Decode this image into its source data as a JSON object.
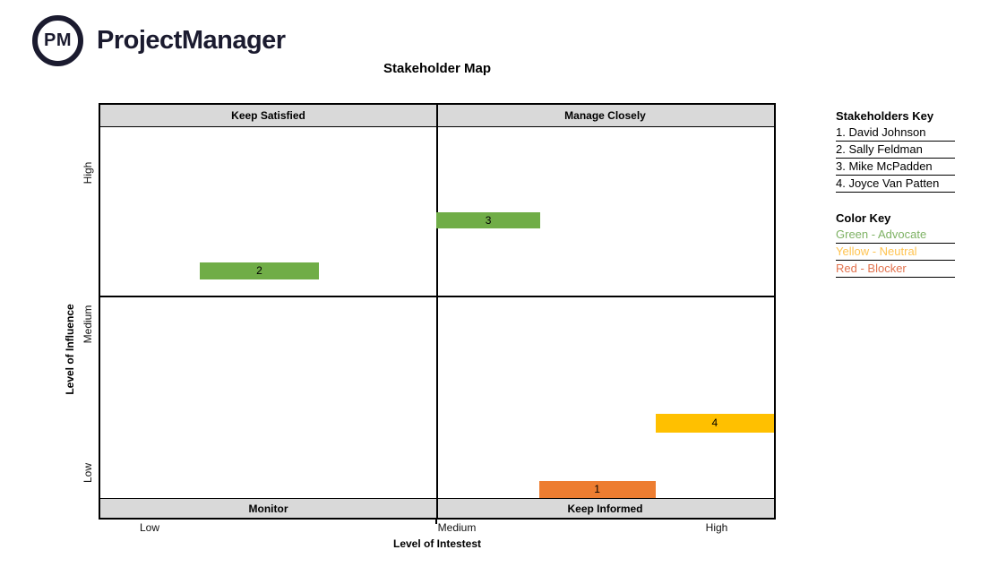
{
  "logo": {
    "monogram": "PM",
    "wordmark": "ProjectManager",
    "color": "#1b1b2f"
  },
  "chart": {
    "title": "Stakeholder Map",
    "quadrant_labels": {
      "top_left": "Keep Satisfied",
      "top_right": "Manage Closely",
      "bottom_left": "Monitor",
      "bottom_right": "Keep Informed"
    },
    "x_axis": {
      "title": "Level of Intestest",
      "ticks": [
        "Low",
        "Medium",
        "High"
      ]
    },
    "y_axis": {
      "title": "Level of Influence",
      "ticks": [
        "High",
        "Medium",
        "Low"
      ]
    },
    "band_bg": "#d9d9d9"
  },
  "chart_data": {
    "type": "scatter",
    "title": "Stakeholder Map",
    "xlabel": "Level of Intestest",
    "ylabel": "Level of Influence",
    "x_ticks": [
      "Low",
      "Medium",
      "High"
    ],
    "y_ticks": [
      "Low",
      "Medium",
      "High"
    ],
    "legend_position": "right",
    "grid": "quadrants",
    "quadrants": {
      "top_left": "Keep Satisfied",
      "top_right": "Manage Closely",
      "bottom_left": "Monitor",
      "bottom_right": "Keep Informed"
    },
    "points": [
      {
        "id": "1",
        "name": "David Johnson",
        "role": "Blocker",
        "color": "#ED7D31",
        "quadrant": "Keep Informed",
        "interest": "Medium-High",
        "influence": "Low",
        "x_pct": 65.1,
        "y_pct": 91.0,
        "w_pct": 17.3,
        "h_pct": 4.3
      },
      {
        "id": "2",
        "name": "Sally Feldman",
        "role": "Advocate",
        "color": "#70AD47",
        "quadrant": "Keep Satisfied",
        "interest": "Low-Medium",
        "influence": "High",
        "x_pct": 14.8,
        "y_pct": 38.1,
        "w_pct": 17.6,
        "h_pct": 4.1
      },
      {
        "id": "3",
        "name": "Mike McPadden",
        "role": "Advocate",
        "color": "#70AD47",
        "quadrant": "Manage Closely",
        "interest": "Medium",
        "influence": "High",
        "x_pct": 49.9,
        "y_pct": 26.0,
        "w_pct": 15.4,
        "h_pct": 3.9
      },
      {
        "id": "4",
        "name": "Joyce Van Patten",
        "role": "Neutral",
        "color": "#FFC000",
        "quadrant": "Keep Informed",
        "interest": "High",
        "influence": "Low-Medium",
        "x_pct": 82.4,
        "y_pct": 74.8,
        "w_pct": 17.6,
        "h_pct": 4.5
      }
    ]
  },
  "stakeholders_key": {
    "title": "Stakeholders Key",
    "items": [
      "1. David Johnson",
      "2. Sally Feldman",
      "3. Mike McPadden",
      "4. Joyce Van Patten"
    ]
  },
  "color_key": {
    "title": "Color Key",
    "items": [
      {
        "label": "Green - Advocate",
        "color": "#7EB264"
      },
      {
        "label": "Yellow - Neutral",
        "color": "#FFC34F"
      },
      {
        "label": "Red - Blocker",
        "color": "#E2734F"
      }
    ]
  }
}
